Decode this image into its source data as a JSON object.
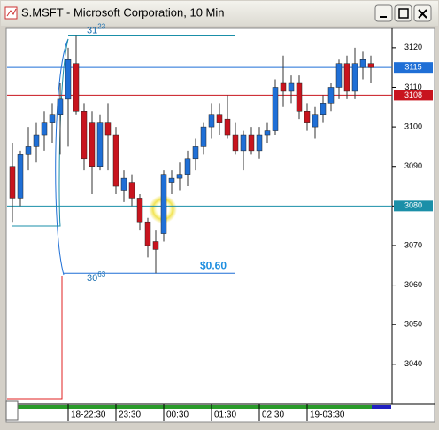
{
  "chart_data": {
    "type": "candlestick",
    "title": "S.MSFT - Microsoft Corporation, 10 Min",
    "categories": [
      null,
      null,
      null,
      null,
      null,
      null,
      null,
      "18-22:30",
      null,
      null,
      null,
      null,
      null,
      "23:30",
      null,
      null,
      null,
      null,
      null,
      "00:30",
      null,
      null,
      null,
      null,
      null,
      "01:30",
      null,
      null,
      null,
      null,
      null,
      "02:30",
      null,
      null,
      null,
      null,
      null,
      "19-03:30",
      null,
      null,
      null,
      null,
      null,
      null,
      null,
      null
    ],
    "open": [
      3090,
      3082,
      3093,
      3095,
      3098,
      3101,
      3103,
      3107,
      3116,
      3104,
      3101,
      3090,
      3101,
      3098,
      3084,
      3086,
      3082,
      3076,
      3071,
      3073,
      3086,
      3087,
      3088,
      3092,
      3095,
      3100,
      3103,
      3102,
      3098,
      3094,
      3098,
      3094,
      3098,
      3099,
      3111,
      3109,
      3111,
      3104,
      3100,
      3103,
      3106,
      3110,
      3116,
      3109,
      3115,
      3116
    ],
    "high": [
      3096,
      3094,
      3100,
      3101,
      3104,
      3106,
      3111,
      3120,
      3123,
      3106,
      3104,
      3103,
      3106,
      3100,
      3089,
      3088,
      3083,
      3077,
      3074,
      3089,
      3089,
      3091,
      3094,
      3097,
      3101,
      3106,
      3106,
      3108,
      3101,
      3099,
      3100,
      3100,
      3101,
      3112,
      3118,
      3113,
      3113,
      3106,
      3105,
      3108,
      3111,
      3117,
      3118,
      3120,
      3119,
      3118
    ],
    "low": [
      3076,
      3080,
      3089,
      3091,
      3094,
      3096,
      3093,
      3095,
      3103,
      3089,
      3083,
      3089,
      3089,
      3083,
      3081,
      3080,
      3074,
      3067,
      3063,
      3071,
      3083,
      3084,
      3085,
      3089,
      3093,
      3097,
      3098,
      3097,
      3093,
      3089,
      3093,
      3092,
      3096,
      3098,
      3105,
      3106,
      3102,
      3099,
      3097,
      3101,
      3104,
      3107,
      3107,
      3107,
      3112,
      3111
    ],
    "close": [
      3082,
      3093,
      3095,
      3098,
      3101,
      3103,
      3107,
      3117,
      3104,
      3092,
      3090,
      3101,
      3098,
      3085,
      3087,
      3082,
      3076,
      3070,
      3069,
      3088,
      3087,
      3088,
      3092,
      3095,
      3100,
      3103,
      3101,
      3098,
      3094,
      3098,
      3094,
      3098,
      3099,
      3110,
      3109,
      3111,
      3104,
      3101,
      3103,
      3106,
      3110,
      3116,
      3109,
      3116,
      3117,
      3115
    ],
    "up_color": "#1f6fd6",
    "down_color": "#c8141e",
    "ylim": [
      3030.1,
      3124.9
    ],
    "yticks": [
      3040,
      3050,
      3060,
      3070,
      3080,
      3090,
      3100,
      3110,
      3120
    ],
    "price_lines": [
      {
        "value": 3115,
        "color": "#1f6fd6"
      },
      {
        "value": 3108,
        "color": "#c8141e"
      },
      {
        "value": 3080,
        "color": "#1a8fa8"
      }
    ],
    "range_high": 3123,
    "range_low": 3063,
    "range_label": "$0.60"
  }
}
